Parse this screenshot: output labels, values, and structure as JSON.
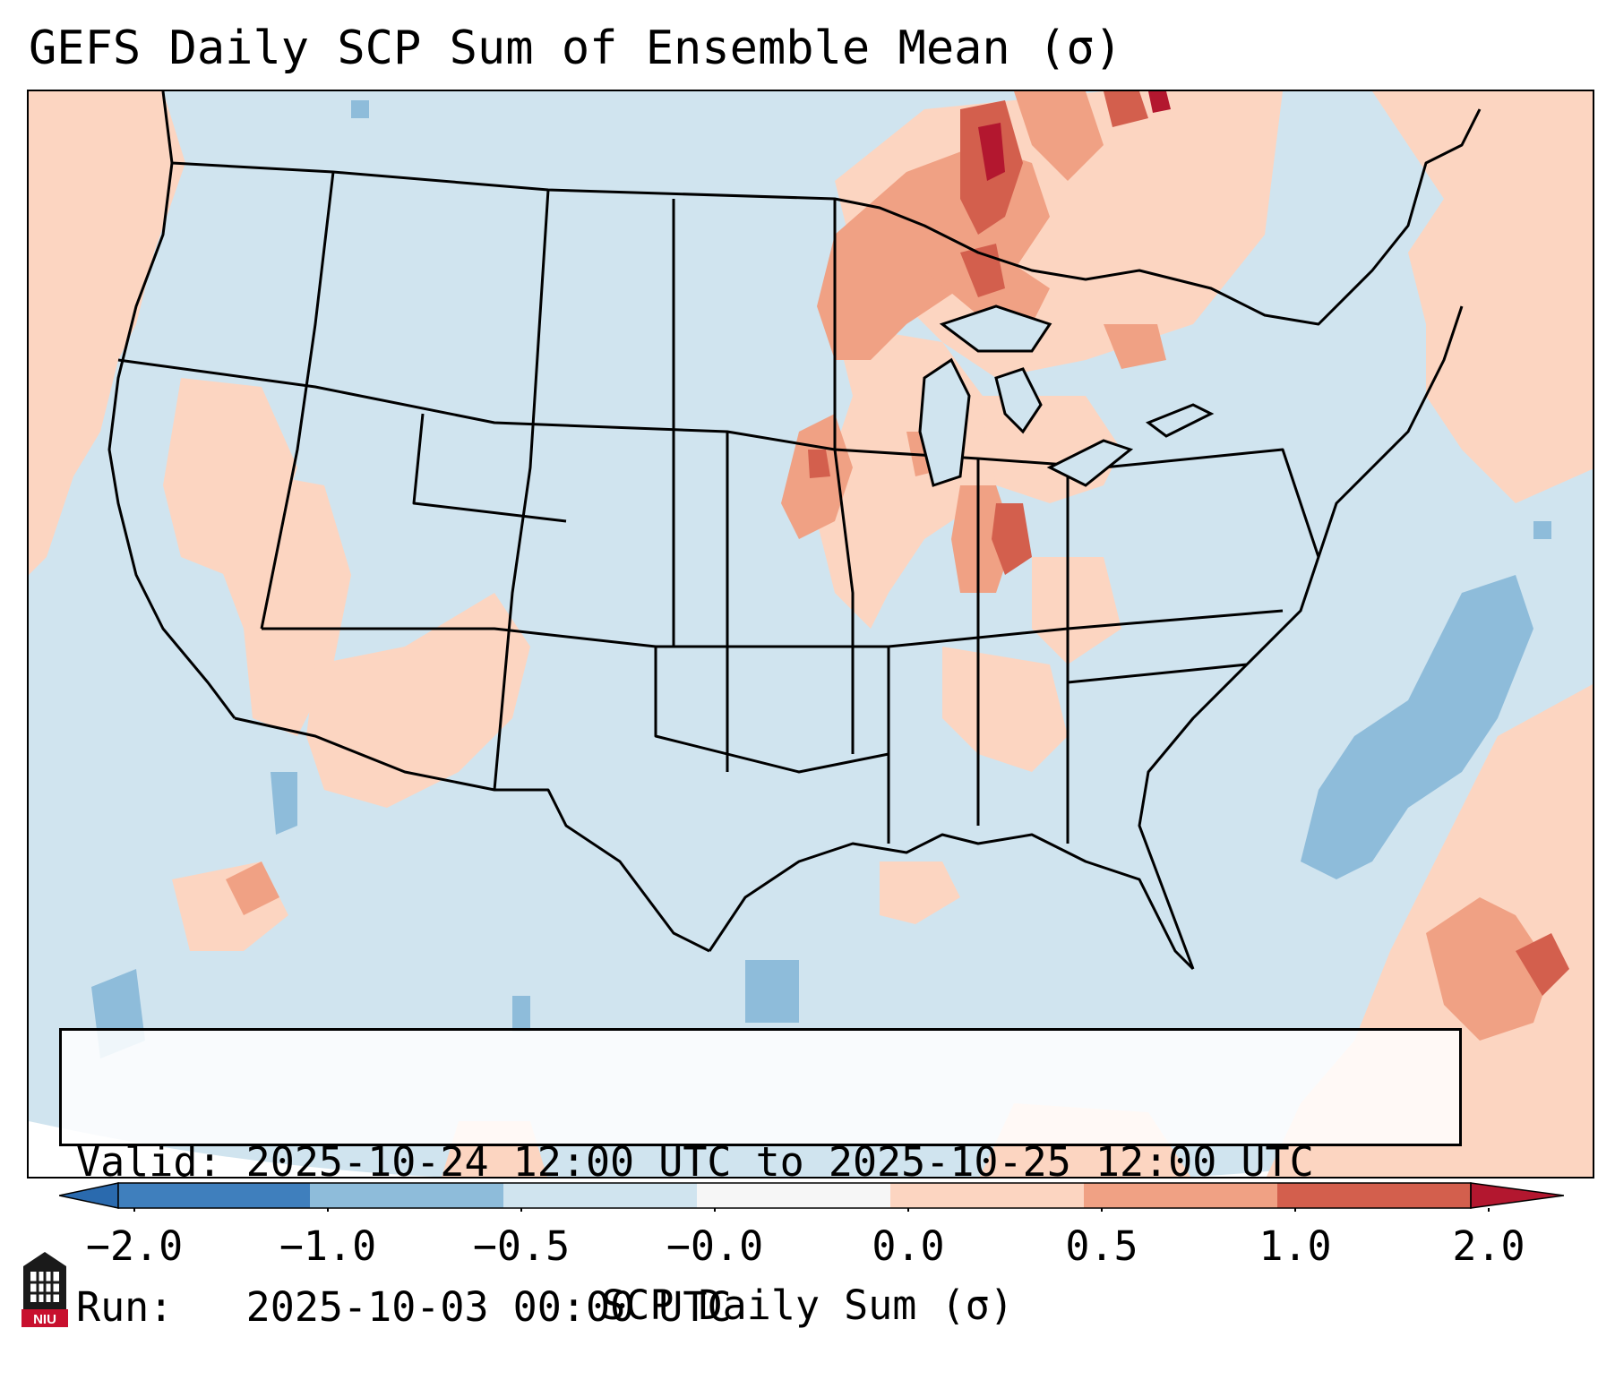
{
  "title": "GEFS Daily SCP Sum of Ensemble Mean (σ)",
  "info": {
    "valid_label": "Valid:",
    "valid_value": "2025-10-24 12:00 UTC to 2025-10-25 12:00 UTC",
    "run_label": "Run:",
    "run_value": "2025-10-03 00:00 UTC"
  },
  "colorbar": {
    "label": "SCP Daily Sum (σ)",
    "ticks": [
      "−2.0",
      "−1.0",
      "−0.5",
      "−0.0",
      "0.0",
      "0.5",
      "1.0",
      "2.0"
    ],
    "colors": [
      "#3f7fbd",
      "#8ebcda",
      "#d0e4ef",
      "#f6f6f6",
      "#fcd5c1",
      "#f0a184",
      "#d35f4d",
      "#b3172f"
    ],
    "extend": "both"
  },
  "logo": {
    "text": "NIU",
    "icon": "niu-building-logo-icon"
  },
  "map": {
    "region": "CONUS",
    "background_color": "#d0e4ef",
    "border_color": "#000000",
    "anomaly_regions": [
      {
        "name": "upper-midwest",
        "level": "1.0"
      },
      {
        "name": "mississippi-valley",
        "level": "0.5"
      },
      {
        "name": "southwest",
        "level": "0.0"
      },
      {
        "name": "northeast",
        "level": "0.0"
      },
      {
        "name": "caribbean",
        "level": "0.5"
      },
      {
        "name": "atlantic",
        "level": "-1.0"
      },
      {
        "name": "gulf",
        "level": "-1.0"
      }
    ]
  }
}
